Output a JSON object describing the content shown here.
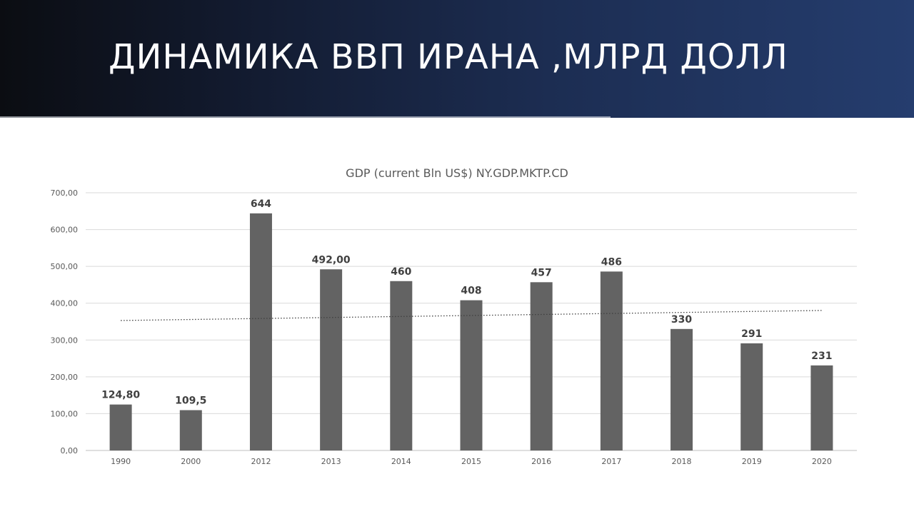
{
  "slide": {
    "title": "ДИНАМИКА ВВП ИРАНА ,МЛРД ДОЛЛ"
  },
  "chart_data": {
    "type": "bar",
    "title": "GDP (current Bln US$) NY.GDP.MKTP.CD",
    "xlabel": "",
    "ylabel": "",
    "categories": [
      "1990",
      "2000",
      "2012",
      "2013",
      "2014",
      "2015",
      "2016",
      "2017",
      "2018",
      "2019",
      "2020"
    ],
    "values": [
      124.8,
      109.5,
      644,
      492,
      460,
      408,
      457,
      486,
      330,
      291,
      231
    ],
    "data_labels": [
      "124,80",
      "109,5",
      "644",
      "492,00",
      "460",
      "408",
      "457",
      "486",
      "330",
      "291",
      "231"
    ],
    "ylim": [
      0,
      700
    ],
    "y_ticks": [
      "0,00",
      "100,00",
      "200,00",
      "300,00",
      "400,00",
      "500,00",
      "600,00",
      "700,00"
    ],
    "grid": true,
    "bar_color": "#636363",
    "trendline": {
      "type": "linear",
      "style": "dotted",
      "color": "#404040"
    }
  }
}
